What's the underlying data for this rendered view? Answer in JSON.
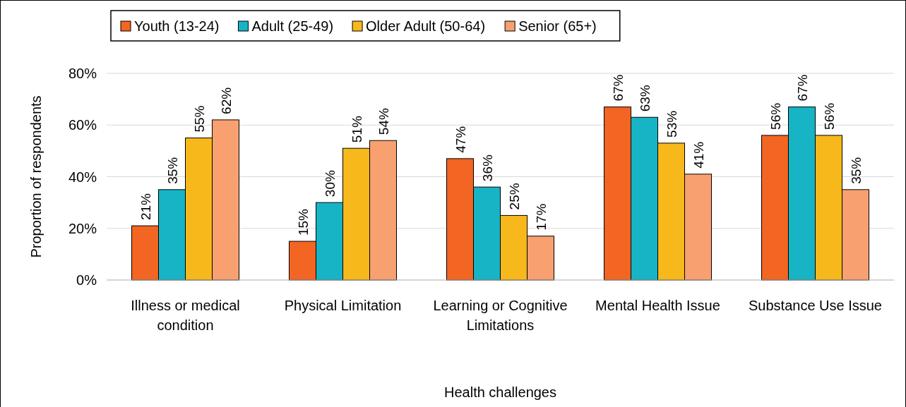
{
  "chart_data": {
    "type": "bar",
    "xlabel": "Health challenges",
    "ylabel": "Proportion of respondents",
    "categories": [
      "Illness or medical condition",
      "Physical Limitation",
      "Learning or Cognitive Limitations",
      "Mental Health Issue",
      "Substance Use Issue"
    ],
    "series": [
      {
        "name": "Youth (13-24)",
        "color": "#f26522",
        "values": [
          21,
          15,
          47,
          67,
          56
        ],
        "value_labels": [
          "21%",
          "15%",
          "47%",
          "67%",
          "56%"
        ]
      },
      {
        "name": "Adult (25-49)",
        "color": "#17b4c6",
        "values": [
          35,
          30,
          36,
          63,
          67
        ],
        "value_labels": [
          "35%",
          "30%",
          "36%",
          "63%",
          "67%"
        ]
      },
      {
        "name": "Older Adult (50-64)",
        "color": "#f7b81c",
        "values": [
          55,
          51,
          25,
          53,
          56
        ],
        "value_labels": [
          "55%",
          "51%",
          "25%",
          "53%",
          "56%"
        ]
      },
      {
        "name": "Senior (65+)",
        "color": "#f8a070",
        "values": [
          62,
          54,
          17,
          41,
          35
        ],
        "value_labels": [
          "62%",
          "54%",
          "17%",
          "41%",
          "35%"
        ]
      }
    ],
    "ylim": [
      0,
      80
    ],
    "yticks": [
      {
        "value": 0,
        "label": "0%"
      },
      {
        "value": 20,
        "label": "20%"
      },
      {
        "value": 40,
        "label": "40%"
      },
      {
        "value": 60,
        "label": "60%"
      },
      {
        "value": 80,
        "label": "80%"
      }
    ],
    "grid": "y",
    "legend": "top"
  }
}
